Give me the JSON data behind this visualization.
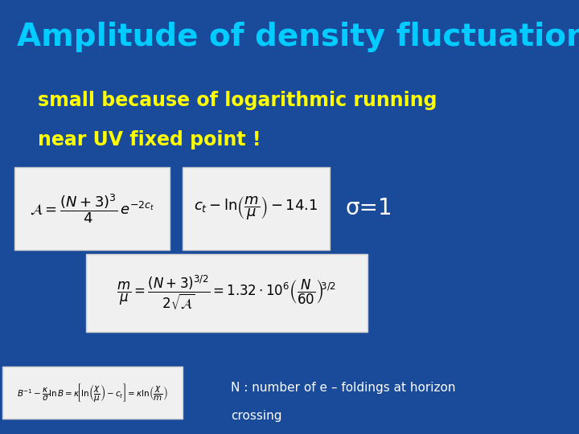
{
  "background_color": "#1a4a9a",
  "title": "Amplitude of density fluctuations",
  "title_color": "#00ccff",
  "title_fontsize": 28,
  "subtitle_line1": "small because of logarithmic running",
  "subtitle_line2": "near UV fixed point !",
  "subtitle_color": "#ffff00",
  "subtitle_fontsize": 17,
  "sigma_label": "σ=1",
  "sigma_color": "#ffffff",
  "sigma_fontsize": 20,
  "note_line1": "N : number of e – foldings at horizon",
  "note_line2": "crossing",
  "note_color": "#ffffff",
  "note_fontsize": 11,
  "box_facecolor": "#f0f0f0",
  "box_edgecolor": "#cccccc"
}
